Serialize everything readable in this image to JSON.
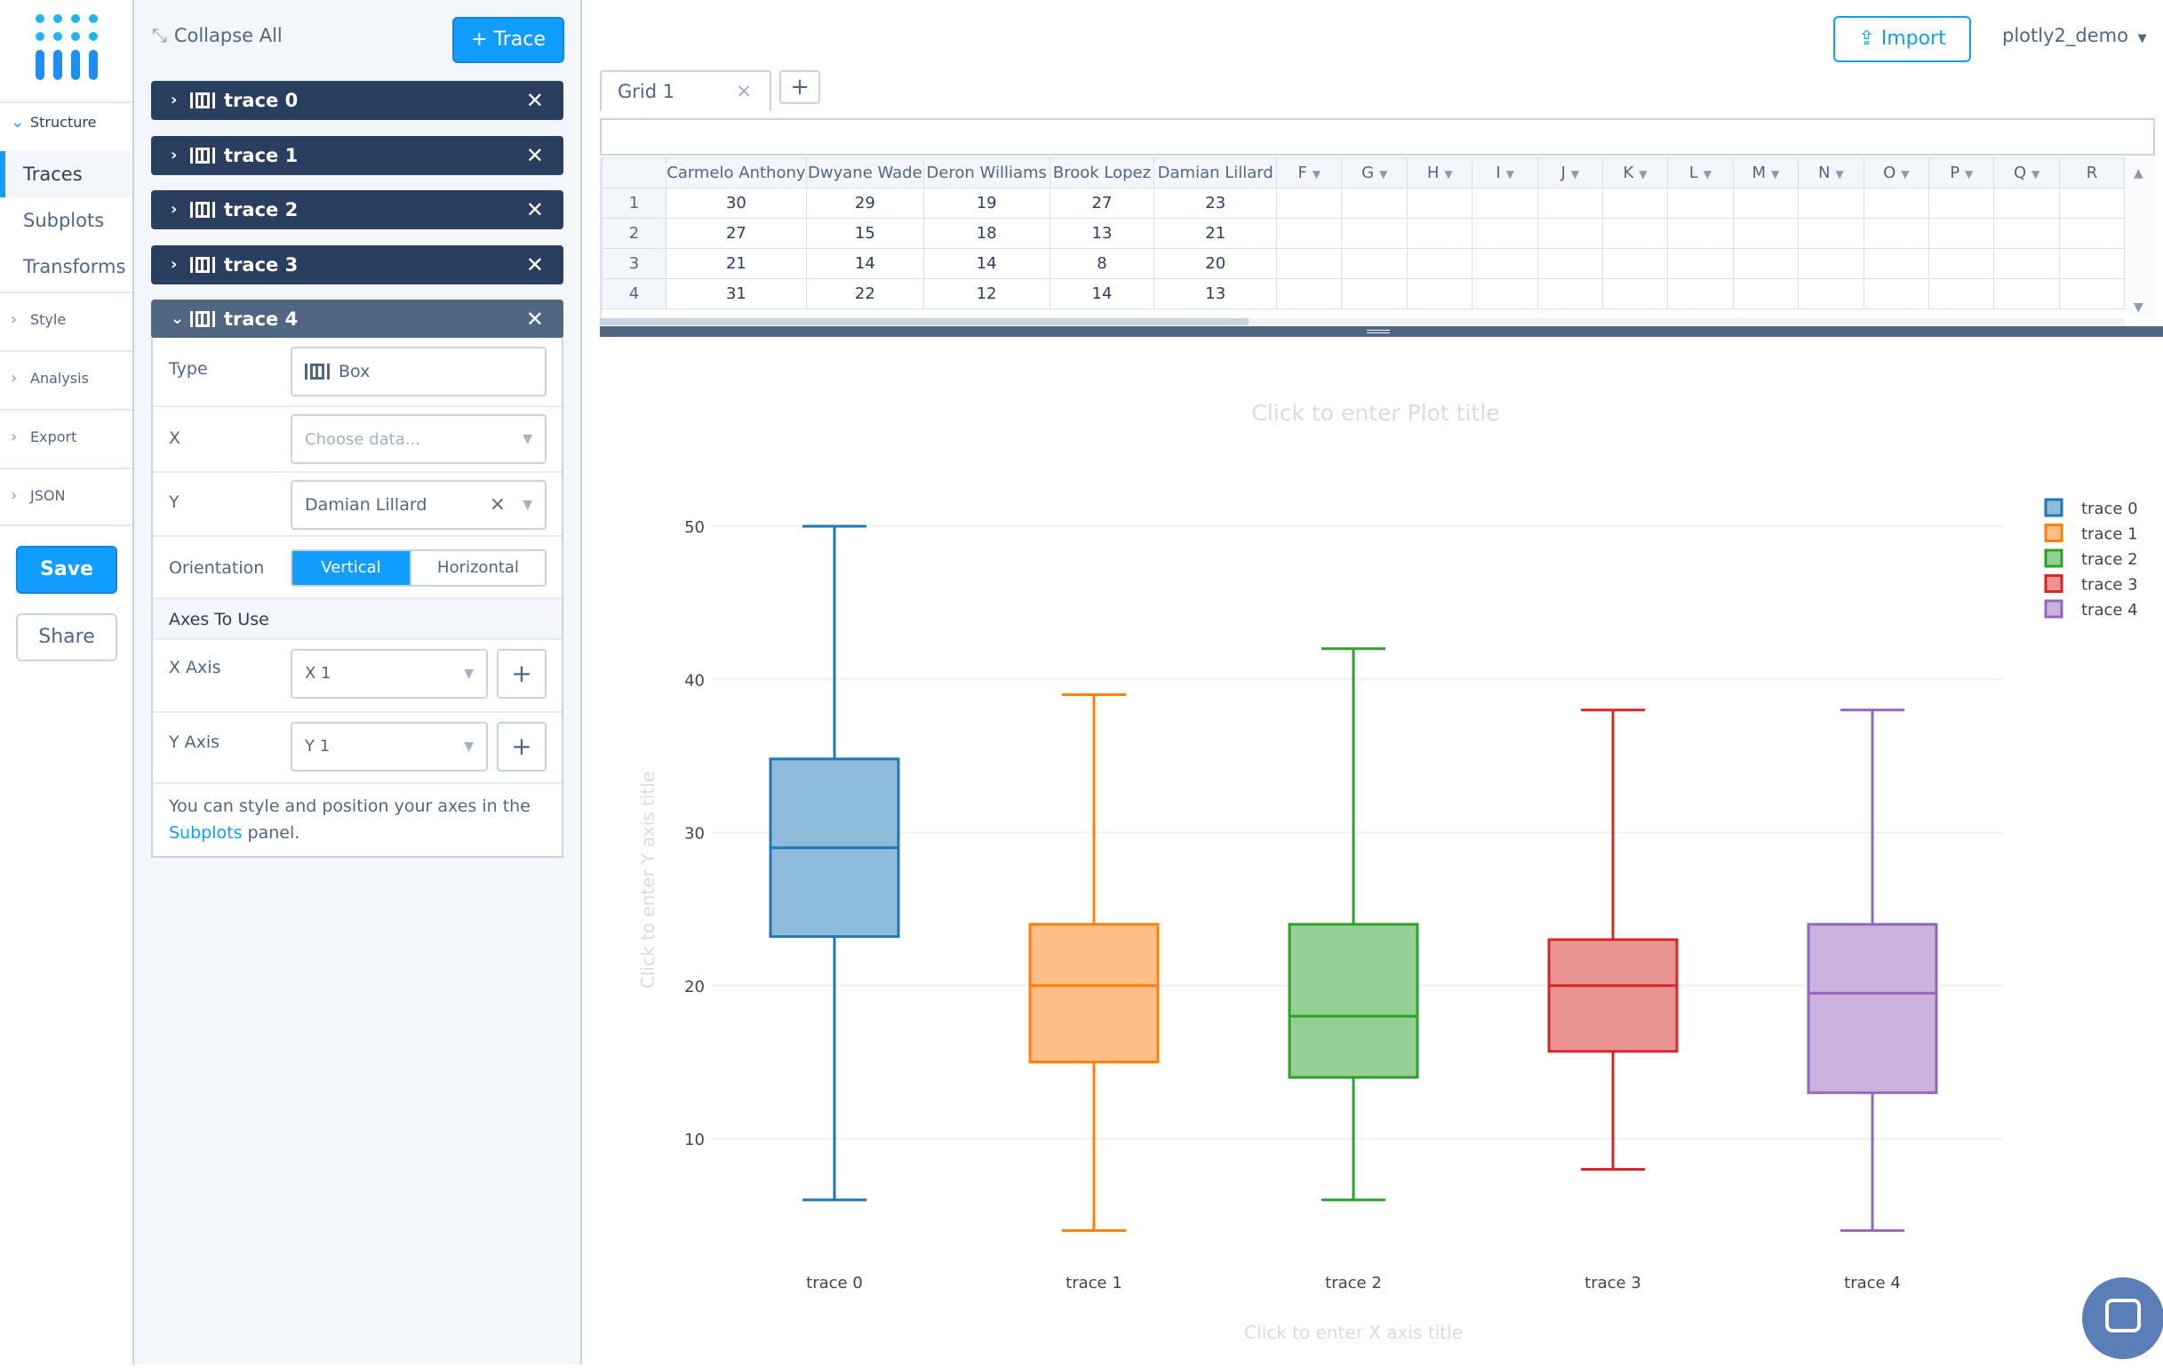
{
  "nav": {
    "structure": "Structure",
    "traces": "Traces",
    "subplots": "Subplots",
    "transforms": "Transforms",
    "style": "Style",
    "analysis": "Analysis",
    "export": "Export",
    "json": "JSON",
    "save": "Save",
    "share": "Share"
  },
  "panel": {
    "collapse_all": "Collapse All",
    "add_trace": "+ Trace",
    "traces": [
      "trace 0",
      "trace 1",
      "trace 2",
      "trace 3",
      "trace 4"
    ],
    "fields": {
      "type_label": "Type",
      "type_value": "Box",
      "x_label": "X",
      "x_placeholder": "Choose data...",
      "y_label": "Y",
      "y_value": "Damian Lillard",
      "orientation_label": "Orientation",
      "orientation_vertical": "Vertical",
      "orientation_horizontal": "Horizontal",
      "axes_header": "Axes To Use",
      "x_axis_label": "X Axis",
      "x_axis_value": "X 1",
      "y_axis_label": "Y Axis",
      "y_axis_value": "Y 1",
      "note_prefix": "You can style and position your axes in the",
      "note_link": "Subplots",
      "note_suffix": "panel."
    }
  },
  "topbar": {
    "import": "Import",
    "user": "plotly2_demo"
  },
  "grid": {
    "tab": "Grid 1",
    "columns": [
      "Carmelo Anthony",
      "Dwyane Wade",
      "Deron Williams",
      "Brook Lopez",
      "Damian Lillard",
      "F",
      "G",
      "H",
      "I",
      "J",
      "K",
      "L",
      "M",
      "N",
      "O",
      "P",
      "Q",
      "R"
    ],
    "rows": [
      {
        "n": "1",
        "cells": [
          "30",
          "29",
          "19",
          "27",
          "23"
        ]
      },
      {
        "n": "2",
        "cells": [
          "27",
          "15",
          "18",
          "13",
          "21"
        ]
      },
      {
        "n": "3",
        "cells": [
          "21",
          "14",
          "14",
          "8",
          "20"
        ]
      },
      {
        "n": "4",
        "cells": [
          "31",
          "22",
          "12",
          "14",
          "13"
        ]
      }
    ]
  },
  "chart_data": {
    "type": "box",
    "title": "Click to enter Plot title",
    "xlabel": "Click to enter X axis title",
    "ylabel": "Click to enter Y axis title",
    "yticks": [
      10,
      20,
      30,
      40,
      50
    ],
    "ylim": [
      4,
      52
    ],
    "grid": true,
    "legend_position": "top-right",
    "categories": [
      "trace 0",
      "trace 1",
      "trace 2",
      "trace 3",
      "trace 4"
    ],
    "series": [
      {
        "name": "trace 0",
        "color": "#1f77b4",
        "fill": "#8fbbda",
        "min": 6,
        "q1": 23.2,
        "median": 29,
        "q3": 34.8,
        "max": 50
      },
      {
        "name": "trace 1",
        "color": "#ff7f0e",
        "fill": "#ffbf86",
        "min": 4,
        "q1": 15,
        "median": 20,
        "q3": 24,
        "max": 39
      },
      {
        "name": "trace 2",
        "color": "#2ca02c",
        "fill": "#95cf95",
        "min": 6,
        "q1": 14,
        "median": 18,
        "q3": 24,
        "max": 42
      },
      {
        "name": "trace 3",
        "color": "#d62728",
        "fill": "#ea9393",
        "min": 8,
        "q1": 15.7,
        "median": 20,
        "q3": 23,
        "max": 38
      },
      {
        "name": "trace 4",
        "color": "#9467bd",
        "fill": "#c9b3de",
        "min": 4,
        "q1": 13,
        "median": 19.5,
        "q3": 24,
        "max": 38
      }
    ]
  }
}
